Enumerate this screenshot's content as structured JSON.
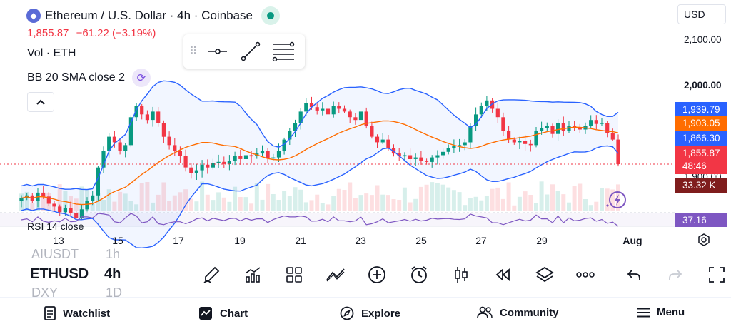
{
  "header": {
    "title": "Ethereum / U.S. Dollar · 4h · Coinbase",
    "price": "1,855.87",
    "change": "−61.22 (−3.19%)",
    "volume_label": "Vol · ETH",
    "indicator_label": "BB 20 SMA close 2",
    "rsi_label": "RSI 14 close"
  },
  "currency": "USD",
  "price_axis": {
    "labels": [
      "2,100.00",
      "2,000.00",
      "1,900.00"
    ],
    "bb_upper": "1,939.79",
    "bb_basis": "1,903.05",
    "bb_lower": "1,866.30",
    "last_price": "1,855.87",
    "countdown": "48:46",
    "volume": "33.32 K",
    "rsi": "37.16"
  },
  "time_axis": [
    "13",
    "15",
    "17",
    "19",
    "21",
    "23",
    "25",
    "27",
    "29",
    "Aug"
  ],
  "colors": {
    "up": "#089981",
    "down": "#f23645",
    "bb_band": "#2962ff",
    "bb_basis": "#ff6d00",
    "rsi": "#7e57c2"
  },
  "symbols": {
    "prev": "AIUSDT",
    "prev_interval": "1h",
    "current": "ETHUSD",
    "current_interval": "4h",
    "next": "DXY",
    "next_interval": "1D"
  },
  "nav": {
    "watchlist": "Watchlist",
    "chart": "Chart",
    "explore": "Explore",
    "community": "Community",
    "menu": "Menu"
  },
  "chart_data": {
    "type": "candlestick",
    "series_close": [
      1795,
      1800,
      1790,
      1805,
      1798,
      1785,
      1780,
      1770,
      1778,
      1768,
      1760,
      1775,
      1790,
      1800,
      1850,
      1880,
      1905,
      1895,
      1880,
      1890,
      1940,
      1960,
      1945,
      1935,
      1950,
      1930,
      1905,
      1890,
      1880,
      1870,
      1850,
      1840,
      1845,
      1855,
      1850,
      1858,
      1860,
      1856,
      1862,
      1870,
      1865,
      1872,
      1870,
      1875,
      1880,
      1866,
      1868,
      1880,
      1900,
      1915,
      1930,
      1950,
      1965,
      1958,
      1952,
      1955,
      1945,
      1960,
      1955,
      1950,
      1940,
      1935,
      1950,
      1925,
      1905,
      1895,
      1900,
      1885,
      1875,
      1870,
      1872,
      1865,
      1868,
      1862,
      1860,
      1868,
      1872,
      1878,
      1885,
      1888,
      1890,
      1895,
      1925,
      1945,
      1960,
      1970,
      1955,
      1940,
      1915,
      1900,
      1895,
      1898,
      1892,
      1890,
      1915,
      1920,
      1925,
      1910,
      1930,
      1915,
      1925,
      1920,
      1918,
      1925,
      1935,
      1928,
      1930,
      1912,
      1900,
      1856
    ],
    "ylim": [
      1700,
      2150
    ],
    "bb": {
      "upper": "1,939.79",
      "basis": "1,903.05",
      "lower": "1,866.30"
    },
    "rsi_last": 37.16
  }
}
